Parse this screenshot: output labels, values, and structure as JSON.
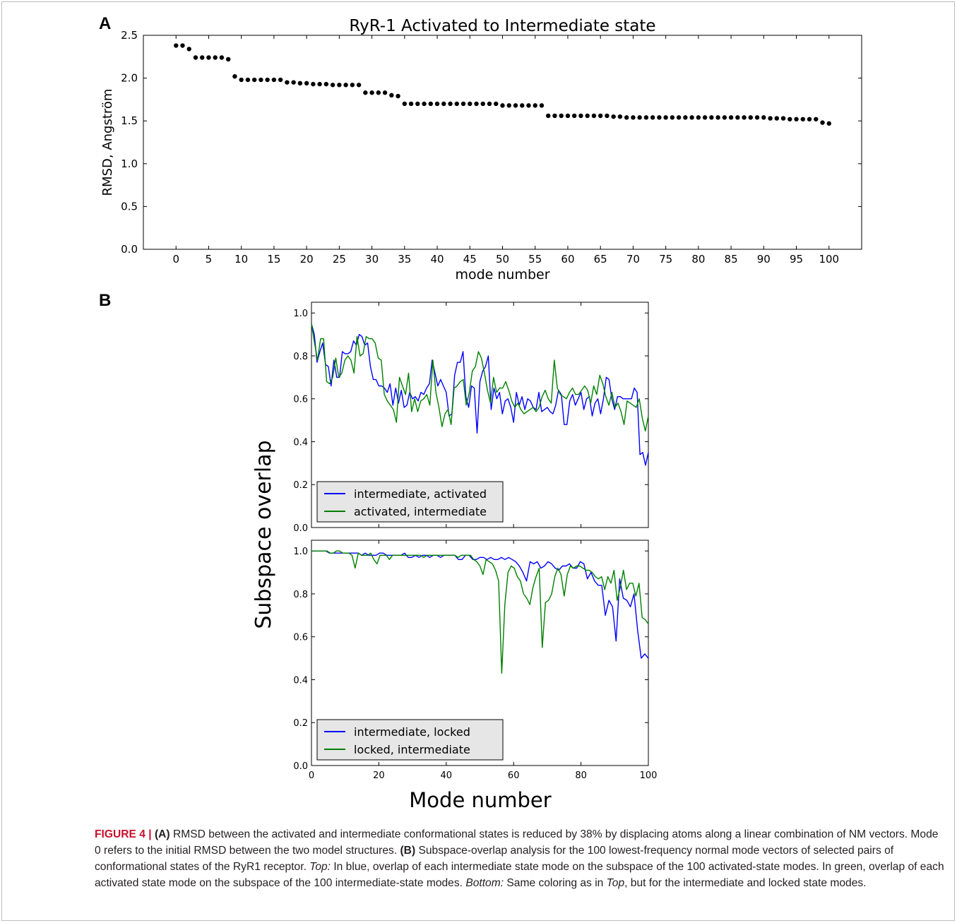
{
  "figure": {
    "panel_a_label": "A",
    "panel_b_label": "B",
    "caption": {
      "fig_label": "FIGURE 4 |",
      "a_tag": "(A)",
      "a_text": " RMSD between the activated and intermediate conformational states is reduced by 38% by displacing atoms along a linear combination of NM vectors. Mode 0 refers to the initial RMSD between the two model structures. ",
      "b_tag": "(B)",
      "b_text": " Subspace-overlap analysis for the 100 lowest-frequency normal mode vectors of selected pairs of conformational states of the RyR1 receptor. ",
      "top_tag": "Top:",
      "top_text": " In blue, overlap of each intermediate state mode on the subspace of the 100 activated-state modes. In green, overlap of each activated state mode on the subspace of the 100 intermediate-state modes. ",
      "bottom_tag": "Bottom:",
      "bottom_text_1": " Same coloring as in ",
      "bottom_ref": "Top",
      "bottom_text_2": ", but for the intermediate and locked state modes."
    }
  },
  "colors": {
    "blue": "#0000ff",
    "green": "#008000",
    "points": "#000000",
    "caption_red": "#c8102e"
  },
  "chart_data": [
    {
      "type": "scatter",
      "title": "RyR-1 Activated to Intermediate state",
      "xlabel": "mode number",
      "ylabel": "RMSD, Angström",
      "xticks": [
        0,
        5,
        10,
        15,
        20,
        25,
        30,
        35,
        40,
        45,
        50,
        55,
        60,
        65,
        70,
        75,
        80,
        85,
        90,
        95,
        100
      ],
      "yticks": [
        0.0,
        0.5,
        1.0,
        1.5,
        2.0,
        2.5
      ],
      "xlim": [
        -5,
        105
      ],
      "ylim": [
        0,
        2.5
      ],
      "x": [
        0,
        1,
        2,
        3,
        4,
        5,
        6,
        7,
        8,
        9,
        10,
        11,
        12,
        13,
        14,
        15,
        16,
        17,
        18,
        19,
        20,
        21,
        22,
        23,
        24,
        25,
        26,
        27,
        28,
        29,
        30,
        31,
        32,
        33,
        34,
        35,
        36,
        37,
        38,
        39,
        40,
        41,
        42,
        43,
        44,
        45,
        46,
        47,
        48,
        49,
        50,
        51,
        52,
        53,
        54,
        55,
        56,
        57,
        58,
        59,
        60,
        61,
        62,
        63,
        64,
        65,
        66,
        67,
        68,
        69,
        70,
        71,
        72,
        73,
        74,
        75,
        76,
        77,
        78,
        79,
        80,
        81,
        82,
        83,
        84,
        85,
        86,
        87,
        88,
        89,
        90,
        91,
        92,
        93,
        94,
        95,
        96,
        97,
        98,
        99,
        100
      ],
      "y": [
        2.38,
        2.38,
        2.34,
        2.24,
        2.24,
        2.24,
        2.24,
        2.24,
        2.22,
        2.02,
        1.98,
        1.98,
        1.98,
        1.98,
        1.98,
        1.98,
        1.98,
        1.95,
        1.95,
        1.94,
        1.94,
        1.93,
        1.93,
        1.93,
        1.92,
        1.92,
        1.92,
        1.92,
        1.92,
        1.83,
        1.83,
        1.83,
        1.83,
        1.8,
        1.79,
        1.7,
        1.7,
        1.7,
        1.7,
        1.7,
        1.7,
        1.7,
        1.7,
        1.7,
        1.7,
        1.7,
        1.7,
        1.7,
        1.7,
        1.7,
        1.68,
        1.68,
        1.68,
        1.68,
        1.68,
        1.68,
        1.68,
        1.56,
        1.56,
        1.56,
        1.56,
        1.56,
        1.56,
        1.56,
        1.56,
        1.56,
        1.56,
        1.55,
        1.55,
        1.54,
        1.54,
        1.54,
        1.54,
        1.54,
        1.54,
        1.54,
        1.54,
        1.54,
        1.54,
        1.54,
        1.54,
        1.54,
        1.54,
        1.54,
        1.54,
        1.54,
        1.54,
        1.54,
        1.54,
        1.54,
        1.54,
        1.53,
        1.53,
        1.53,
        1.52,
        1.52,
        1.52,
        1.52,
        1.52,
        1.48,
        1.47
      ]
    },
    {
      "type": "line",
      "title": "",
      "xlabel": "",
      "ylabel": "Subspace overlap",
      "yticks": [
        0.0,
        0.2,
        0.4,
        0.6,
        0.8,
        1.0
      ],
      "xlim": [
        0,
        100
      ],
      "ylim": [
        0,
        1.05
      ],
      "legend_position": "lower-left",
      "series": [
        {
          "name": "intermediate, activated",
          "color": "#0000ff",
          "values": [
            0.95,
            0.9,
            0.77,
            0.82,
            0.86,
            0.76,
            0.75,
            0.66,
            0.78,
            0.7,
            0.7,
            0.82,
            0.81,
            0.81,
            0.82,
            0.87,
            0.85,
            0.9,
            0.89,
            0.85,
            0.86,
            0.75,
            0.69,
            0.69,
            0.66,
            0.66,
            0.65,
            0.63,
            0.67,
            0.57,
            0.65,
            0.58,
            0.64,
            0.56,
            0.57,
            0.63,
            0.6,
            0.61,
            0.59,
            0.63,
            0.62,
            0.65,
            0.67,
            0.78,
            0.72,
            0.66,
            0.69,
            0.66,
            0.63,
            0.52,
            0.53,
            0.71,
            0.77,
            0.77,
            0.82,
            0.61,
            0.56,
            0.66,
            0.65,
            0.44,
            0.68,
            0.73,
            0.75,
            0.8,
            0.55,
            0.65,
            0.6,
            0.63,
            0.53,
            0.59,
            0.6,
            0.56,
            0.49,
            0.63,
            0.57,
            0.61,
            0.55,
            0.6,
            0.59,
            0.56,
            0.55,
            0.63,
            0.54,
            0.55,
            0.56,
            0.54,
            0.53,
            0.57,
            0.64,
            0.62,
            0.48,
            0.48,
            0.59,
            0.62,
            0.57,
            0.6,
            0.63,
            0.55,
            0.6,
            0.61,
            0.52,
            0.58,
            0.6,
            0.53,
            0.6,
            0.7,
            0.69,
            0.6,
            0.55,
            0.61,
            0.61,
            0.6,
            0.6,
            0.6,
            0.6,
            0.65,
            0.63,
            0.34,
            0.35,
            0.29,
            0.35
          ]
        },
        {
          "name": "activated, intermediate",
          "color": "#008000",
          "values": [
            0.95,
            0.86,
            0.78,
            0.88,
            0.88,
            0.68,
            0.67,
            0.7,
            0.79,
            0.7,
            0.72,
            0.78,
            0.8,
            0.78,
            0.72,
            0.89,
            0.8,
            0.81,
            0.89,
            0.88,
            0.88,
            0.86,
            0.79,
            0.78,
            0.62,
            0.59,
            0.57,
            0.55,
            0.49,
            0.7,
            0.66,
            0.62,
            0.72,
            0.54,
            0.6,
            0.54,
            0.59,
            0.6,
            0.62,
            0.57,
            0.78,
            0.63,
            0.56,
            0.47,
            0.53,
            0.55,
            0.48,
            0.65,
            0.66,
            0.68,
            0.69,
            0.57,
            0.63,
            0.73,
            0.75,
            0.82,
            0.79,
            0.72,
            0.64,
            0.58,
            0.7,
            0.63,
            0.65,
            0.65,
            0.68,
            0.64,
            0.59,
            0.56,
            0.58,
            0.55,
            0.53,
            0.54,
            0.55,
            0.56,
            0.54,
            0.56,
            0.61,
            0.64,
            0.6,
            0.58,
            0.78,
            0.65,
            0.62,
            0.61,
            0.6,
            0.63,
            0.65,
            0.62,
            0.62,
            0.64,
            0.66,
            0.64,
            0.58,
            0.66,
            0.62,
            0.71,
            0.67,
            0.61,
            0.57,
            0.63,
            0.56,
            0.58,
            0.54,
            0.48,
            0.59,
            0.58,
            0.57,
            0.56,
            0.6,
            0.51,
            0.45,
            0.52
          ]
        }
      ]
    },
    {
      "type": "line",
      "title": "",
      "xlabel": "Mode number",
      "ylabel": "",
      "xticks": [
        0,
        20,
        40,
        60,
        80,
        100
      ],
      "yticks": [
        0.0,
        0.2,
        0.4,
        0.6,
        0.8,
        1.0
      ],
      "xlim": [
        0,
        100
      ],
      "ylim": [
        0,
        1.05
      ],
      "legend_position": "lower-left",
      "series": [
        {
          "name": "intermediate, locked",
          "color": "#0000ff",
          "values": [
            1.0,
            1.0,
            1.0,
            1.0,
            1.0,
            0.99,
            0.99,
            0.99,
            0.99,
            0.99,
            0.99,
            0.99,
            0.99,
            0.99,
            0.98,
            0.99,
            0.98,
            0.98,
            0.98,
            0.99,
            0.99,
            0.98,
            0.98,
            0.98,
            0.98,
            0.98,
            0.99,
            0.97,
            0.97,
            0.98,
            0.97,
            0.98,
            0.98,
            0.97,
            0.98,
            0.98,
            0.97,
            0.98,
            0.98,
            0.98,
            0.98,
            0.96,
            0.96,
            0.98,
            0.98,
            0.96,
            0.96,
            0.97,
            0.97,
            0.96,
            0.97,
            0.96,
            0.96,
            0.97,
            0.96,
            0.97,
            0.96,
            0.95,
            0.93,
            0.9,
            0.86,
            0.95,
            0.94,
            0.95,
            0.92,
            0.93,
            0.95,
            0.94,
            0.92,
            0.91,
            0.93,
            0.93,
            0.94,
            0.92,
            0.92,
            0.95,
            0.94,
            0.87,
            0.9,
            0.86,
            0.84,
            0.84,
            0.7,
            0.77,
            0.74,
            0.58,
            0.87,
            0.78,
            0.77,
            0.74,
            0.8,
            0.63,
            0.5,
            0.52,
            0.5
          ]
        },
        {
          "name": "locked, intermediate",
          "color": "#008000",
          "values": [
            1.0,
            1.0,
            1.0,
            1.0,
            1.0,
            1.0,
            0.99,
            0.99,
            1.0,
            1.0,
            0.99,
            0.99,
            0.99,
            0.98,
            0.92,
            0.99,
            0.98,
            0.98,
            0.98,
            0.99,
            0.96,
            0.94,
            0.98,
            0.98,
            0.98,
            0.96,
            0.98,
            0.98,
            0.98,
            0.98,
            0.98,
            0.98,
            0.98,
            0.98,
            0.98,
            0.98,
            0.97,
            0.98,
            0.98,
            0.98,
            0.98,
            0.98,
            0.98,
            0.98,
            0.98,
            0.98,
            0.98,
            0.97,
            0.98,
            0.98,
            0.98,
            0.98,
            0.96,
            0.95,
            0.93,
            0.89,
            0.96,
            0.95,
            0.94,
            0.91,
            0.86,
            0.43,
            0.75,
            0.9,
            0.93,
            0.92,
            0.88,
            0.86,
            0.8,
            0.78,
            0.75,
            0.83,
            0.88,
            0.92,
            0.55,
            0.76,
            0.77,
            0.8,
            0.88,
            0.92,
            0.89,
            0.79,
            0.89,
            0.93,
            0.92,
            0.93,
            0.93,
            0.92,
            0.91,
            0.91,
            0.9,
            0.88,
            0.87,
            0.88,
            0.82,
            0.88,
            0.85,
            0.91,
            0.77,
            0.83,
            0.91,
            0.82,
            0.85,
            0.85,
            0.79,
            0.85,
            0.69,
            0.68,
            0.66
          ]
        }
      ]
    }
  ]
}
